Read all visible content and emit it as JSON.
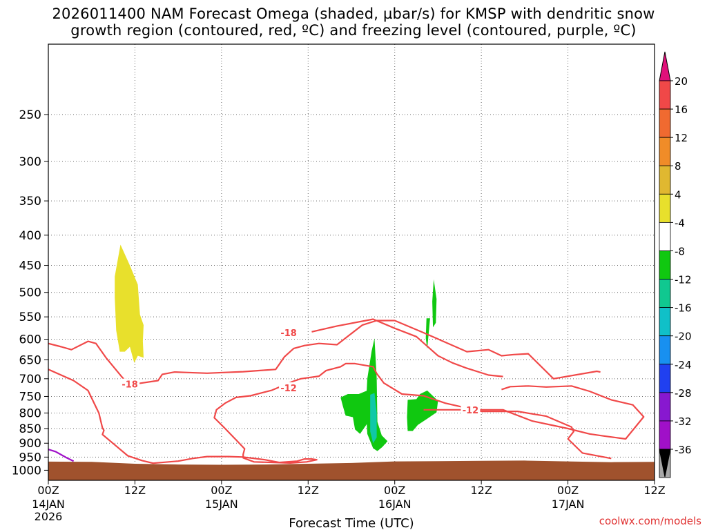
{
  "chart_data": {
    "type": "heatmap",
    "title_line1": "2026011400 NAM Forecast Omega (shaded, µbar/s) for KMSP with dendritic snow",
    "title_line2": "growth region (contoured, red, ºC) and freezing level (contoured, purple, ºC)",
    "xlabel": "Forecast Time (UTC)",
    "ylabel": "",
    "x_unit": "forecast hour",
    "xlim": [
      0,
      84
    ],
    "ylim_hPa": [
      1040,
      190
    ],
    "y_ticks": [
      250,
      300,
      350,
      400,
      450,
      500,
      550,
      600,
      650,
      700,
      750,
      800,
      850,
      900,
      950,
      1000
    ],
    "x_ticks": [
      {
        "hour": 0,
        "l1": "00Z",
        "l2": "14JAN",
        "l3": "2026"
      },
      {
        "hour": 12,
        "l1": "12Z",
        "l2": "",
        "l3": ""
      },
      {
        "hour": 24,
        "l1": "00Z",
        "l2": "15JAN",
        "l3": ""
      },
      {
        "hour": 36,
        "l1": "12Z",
        "l2": "",
        "l3": ""
      },
      {
        "hour": 48,
        "l1": "00Z",
        "l2": "16JAN",
        "l3": ""
      },
      {
        "hour": 60,
        "l1": "12Z",
        "l2": "",
        "l3": ""
      },
      {
        "hour": 72,
        "l1": "00Z",
        "l2": "17JAN",
        "l3": ""
      },
      {
        "hour": 84,
        "l1": "12Z",
        "l2": "",
        "l3": ""
      }
    ],
    "grid": true,
    "colorbar": {
      "labels": [
        "20",
        "16",
        "12",
        "8",
        "4",
        "-4",
        "-8",
        "-12",
        "-16",
        "-20",
        "-24",
        "-28",
        "-32",
        "-36"
      ],
      "top_arrow_color": "#e0107a",
      "bottom_arrow_color": "#000000",
      "bins": [
        {
          "from": 20,
          "to": 16,
          "color": "#f04848"
        },
        {
          "from": 16,
          "to": 12,
          "color": "#f06a30"
        },
        {
          "from": 12,
          "to": 8,
          "color": "#f08c28"
        },
        {
          "from": 8,
          "to": 4,
          "color": "#e0b830"
        },
        {
          "from": 4,
          "to": -4,
          "color": "#e8e02c"
        },
        {
          "from": -4,
          "to": -8,
          "color": "#ffffff"
        },
        {
          "from": -8,
          "to": -12,
          "color": "#10c810"
        },
        {
          "from": -12,
          "to": -16,
          "color": "#10c890"
        },
        {
          "from": -16,
          "to": -20,
          "color": "#10c0c8"
        },
        {
          "from": -20,
          "to": -24,
          "color": "#1890f0"
        },
        {
          "from": -24,
          "to": -28,
          "color": "#2040f0"
        },
        {
          "from": -28,
          "to": -32,
          "color": "#8818d0"
        },
        {
          "from": -32,
          "to": -36,
          "color": "#a010c8"
        },
        {
          "from": -36,
          "to": -40,
          "color": "#a8a8a8"
        }
      ]
    },
    "ground": {
      "color": "#a0522d",
      "surface_hPa": [
        [
          0,
          967
        ],
        [
          6,
          968
        ],
        [
          12,
          975
        ],
        [
          18,
          978
        ],
        [
          24,
          979
        ],
        [
          30,
          978
        ],
        [
          36,
          975
        ],
        [
          42,
          972
        ],
        [
          48,
          966
        ],
        [
          54,
          965
        ],
        [
          60,
          964
        ],
        [
          66,
          963
        ],
        [
          72,
          966
        ],
        [
          78,
          969
        ],
        [
          84,
          968
        ]
      ]
    },
    "omega_regions": [
      {
        "name": "ascent-cell-1",
        "level": -8,
        "color": "#10c810",
        "points": [
          [
            40.5,
            753
          ],
          [
            41.5,
            743
          ],
          [
            43,
            743
          ],
          [
            44.2,
            733
          ],
          [
            44.5,
            753
          ],
          [
            44.8,
            793
          ],
          [
            44.2,
            833
          ],
          [
            43.2,
            868
          ],
          [
            42.5,
            853
          ],
          [
            42.2,
            813
          ],
          [
            41.2,
            808
          ],
          [
            40.8,
            778
          ]
        ]
      },
      {
        "name": "ascent-cell-2",
        "level": -8,
        "color": "#10c810",
        "points": [
          [
            44.2,
            700
          ],
          [
            44.8,
            628
          ],
          [
            45.2,
            598
          ],
          [
            45.5,
            698
          ],
          [
            45.6,
            828
          ],
          [
            46.2,
            873
          ],
          [
            47,
            893
          ],
          [
            46.3,
            913
          ],
          [
            45.6,
            928
          ],
          [
            45,
            918
          ],
          [
            44.2,
            868
          ],
          [
            44,
            783
          ]
        ]
      },
      {
        "name": "ascent-core",
        "level": -12,
        "color": "#10c8a8",
        "points": [
          [
            44.6,
            745
          ],
          [
            45.2,
            740
          ],
          [
            45.5,
            800
          ],
          [
            45.5,
            880
          ],
          [
            45,
            900
          ],
          [
            44.6,
            860
          ]
        ]
      },
      {
        "name": "ascent-cell-3",
        "level": -8,
        "color": "#10c810",
        "points": [
          [
            49.8,
            760
          ],
          [
            51,
            758
          ],
          [
            51.5,
            743
          ],
          [
            52.5,
            733
          ],
          [
            54,
            763
          ],
          [
            53.8,
            798
          ],
          [
            52.5,
            818
          ],
          [
            51.2,
            838
          ],
          [
            50.5,
            858
          ],
          [
            49.8,
            858
          ],
          [
            49.7,
            813
          ]
        ]
      },
      {
        "name": "ascent-streak-1",
        "level": -8,
        "color": "#10c810",
        "points": [
          [
            52.4,
            553
          ],
          [
            52.9,
            553
          ],
          [
            52.7,
            588
          ],
          [
            52.5,
            623
          ],
          [
            52.3,
            598
          ]
        ]
      },
      {
        "name": "ascent-streak-2",
        "level": -8,
        "color": "#10c810",
        "points": [
          [
            53.4,
            475
          ],
          [
            53.8,
            513
          ],
          [
            53.7,
            563
          ],
          [
            53.3,
            573
          ],
          [
            53.2,
            518
          ]
        ]
      },
      {
        "name": "descent-plume",
        "level": 4,
        "color": "#e8e02c",
        "points": [
          [
            10,
            415
          ],
          [
            11.3,
            450
          ],
          [
            12.4,
            485
          ],
          [
            12.7,
            545
          ],
          [
            13.2,
            568
          ],
          [
            13.1,
            605
          ],
          [
            13.2,
            645
          ],
          [
            12.4,
            640
          ],
          [
            11.9,
            658
          ],
          [
            11.3,
            618
          ],
          [
            10.6,
            630
          ],
          [
            9.9,
            630
          ],
          [
            9.4,
            580
          ],
          [
            9.2,
            510
          ],
          [
            9.2,
            470
          ]
        ]
      }
    ],
    "temperature_contours": [
      {
        "level": -18,
        "color": "#f04848",
        "label": "-18",
        "label_at": [
          11.3,
          715
        ],
        "points": [
          [
            0,
            610
          ],
          [
            1.8,
            618
          ],
          [
            3.2,
            625
          ],
          [
            5.5,
            605
          ],
          [
            6.6,
            610
          ],
          [
            8,
            645
          ],
          [
            10.1,
            693
          ],
          [
            11,
            713
          ],
          [
            12.5,
            713
          ],
          [
            15.2,
            705
          ],
          [
            15.8,
            688
          ],
          [
            17.5,
            682
          ],
          [
            19,
            683
          ],
          [
            22,
            685
          ],
          [
            24.5,
            683
          ],
          [
            27,
            681
          ],
          [
            30,
            677
          ],
          [
            31.5,
            675
          ],
          [
            31.8,
            667
          ],
          [
            32.7,
            643
          ],
          [
            34,
            622
          ],
          [
            35.5,
            615
          ],
          [
            37.5,
            610
          ],
          [
            40,
            613
          ],
          [
            43.5,
            568
          ],
          [
            45.5,
            558
          ],
          [
            48,
            558
          ],
          [
            52,
            585
          ],
          [
            58,
            630
          ],
          [
            61,
            625
          ],
          [
            62.8,
            640
          ],
          [
            64.5,
            637
          ],
          [
            66.5,
            635
          ],
          [
            70,
            700
          ],
          [
            76,
            680
          ],
          [
            76.5,
            682
          ]
        ]
      },
      {
        "level": -18,
        "color": "#f04848",
        "label": "-18",
        "label_at": [
          33.3,
          585
        ],
        "points": [
          [
            36.5,
            583
          ],
          [
            40,
            570
          ],
          [
            45,
            555
          ],
          [
            48,
            575
          ],
          [
            51,
            594
          ],
          [
            54,
            640
          ],
          [
            56,
            658
          ],
          [
            58,
            672
          ],
          [
            61,
            690
          ],
          [
            63,
            694
          ]
        ]
      },
      {
        "level": -12,
        "color": "#f04848",
        "label": "-12",
        "label_at": [
          33.3,
          725
        ],
        "points": [
          [
            0,
            675
          ],
          [
            3.5,
            705
          ],
          [
            5.5,
            733
          ],
          [
            7,
            800
          ],
          [
            7.5,
            848
          ],
          [
            7.7,
            856
          ],
          [
            7.5,
            870
          ],
          [
            9.5,
            912
          ],
          [
            11,
            945
          ],
          [
            13,
            963
          ],
          [
            14.5,
            973
          ],
          [
            18,
            965
          ],
          [
            20,
            955
          ],
          [
            22,
            948
          ],
          [
            25,
            948
          ],
          [
            27,
            950
          ],
          [
            30,
            960
          ],
          [
            32,
            970
          ],
          [
            34.5,
            965
          ],
          [
            35.5,
            957
          ],
          [
            36.5,
            957
          ],
          [
            37.2,
            960
          ],
          [
            35.8,
            968
          ],
          [
            33.5,
            972
          ],
          [
            28.5,
            968
          ],
          [
            27,
            953
          ],
          [
            27,
            940
          ],
          [
            27.2,
            920
          ],
          [
            26,
            888
          ],
          [
            24.5,
            850
          ],
          [
            23,
            815
          ],
          [
            23.3,
            790
          ],
          [
            24.5,
            770
          ],
          [
            26,
            753
          ],
          [
            28,
            748
          ],
          [
            31,
            732
          ],
          [
            33.8,
            708
          ],
          [
            35,
            700
          ],
          [
            37.5,
            693
          ],
          [
            38.5,
            678
          ],
          [
            40.5,
            668
          ],
          [
            41.2,
            660
          ],
          [
            42.5,
            660
          ],
          [
            45,
            668
          ],
          [
            45.5,
            686
          ],
          [
            46.5,
            712
          ],
          [
            49,
            743
          ],
          [
            52,
            748
          ],
          [
            55,
            770
          ],
          [
            60,
            795
          ],
          [
            65,
            795
          ],
          [
            69,
            810
          ],
          [
            72.5,
            845
          ],
          [
            72.8,
            860
          ],
          [
            72,
            885
          ],
          [
            74,
            935
          ],
          [
            78,
            955
          ]
        ]
      },
      {
        "level": -12,
        "color": "#f04848",
        "label": "-12",
        "label_at": [
          58.5,
          790
        ],
        "points": [
          [
            52,
            790
          ],
          [
            56,
            790
          ],
          [
            60,
            790
          ],
          [
            63,
            790
          ],
          [
            67,
            825
          ],
          [
            72,
            850
          ],
          [
            75,
            868
          ],
          [
            77,
            875
          ],
          [
            80,
            885
          ],
          [
            82.5,
            812
          ],
          [
            81,
            775
          ],
          [
            78,
            760
          ],
          [
            75,
            735
          ],
          [
            72.5,
            720
          ],
          [
            69,
            723
          ],
          [
            66.5,
            720
          ],
          [
            64,
            722
          ],
          [
            62.8,
            730
          ]
        ]
      }
    ],
    "freezing_contour": {
      "level": 0,
      "color": "#a010c8",
      "points": [
        [
          0,
          922
        ],
        [
          1,
          930
        ],
        [
          2.5,
          952
        ],
        [
          3.5,
          965
        ]
      ]
    }
  }
}
